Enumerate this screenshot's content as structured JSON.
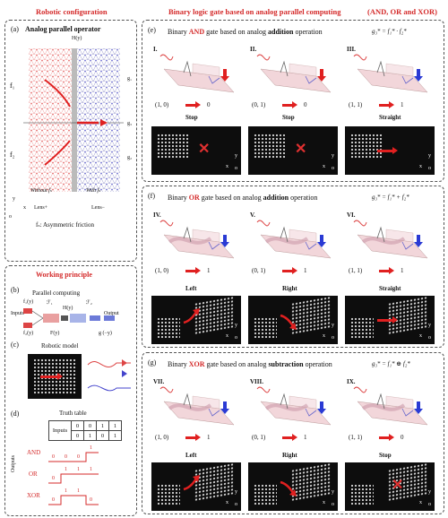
{
  "headers": {
    "left": "Robotic configuration",
    "middle": "Binary logic gate based on analog parallel computing",
    "right": "(AND, OR and XOR)"
  },
  "panel_a": {
    "label": "(a)",
    "title": "Analog parallel operator",
    "H": "H(y)",
    "f1": "f₁",
    "f2": "f₂",
    "g1": "g₁",
    "g3": "g₃",
    "g2": "g₂",
    "without": "Without fₛ",
    "with": "With fₛ",
    "lens_plus": "Lens+",
    "lens_minus": "Lens−",
    "axis_x": "x",
    "axis_y": "y",
    "axis_o": "o",
    "note": "fₛ: Asymmetric friction"
  },
  "panel_b": {
    "section_title": "Working principle",
    "label": "(b)",
    "title": "Parallel computing",
    "f1": "f₁(y)",
    "f2": "f₂(y)",
    "inputs": "Inputs",
    "F1": "ℱ₁",
    "H": "H(y)",
    "F2": "ℱ₂",
    "Fy": "F(y)",
    "output": "Output",
    "g": "g (−y)"
  },
  "panel_c": {
    "label": "(c)",
    "title": "Robotic model"
  },
  "panel_d": {
    "label": "(d)",
    "title": "Truth table",
    "inputs_label": "Inputs",
    "outputs_label": "Outputs",
    "input_rows": [
      [
        "0",
        "0",
        "1",
        "1"
      ],
      [
        "0",
        "1",
        "0",
        "1"
      ]
    ],
    "gates": [
      {
        "name": "AND",
        "values": [
          "0",
          "0",
          "0",
          "1"
        ]
      },
      {
        "name": "OR",
        "values": [
          "0",
          "1",
          "1",
          "1"
        ]
      },
      {
        "name": "XOR",
        "values": [
          "0",
          "1",
          "1",
          "0"
        ]
      }
    ]
  },
  "panel_e": {
    "label": "(e)",
    "title_pre": "Binary ",
    "title_gate": "AND",
    "title_mid": " gate based on analog ",
    "title_op": "addition",
    "title_post": " operation",
    "formula": "g₃* = f₁* · f₂*",
    "cases": [
      {
        "num": "I.",
        "input": "(1, 0)",
        "output": "0",
        "result": "Stop"
      },
      {
        "num": "II.",
        "input": "(0, 1)",
        "output": "0",
        "result": "Stop"
      },
      {
        "num": "III.",
        "input": "(1, 1)",
        "output": "1",
        "result": "Straight"
      }
    ]
  },
  "panel_f": {
    "label": "(f)",
    "title_pre": "Binary ",
    "title_gate": "OR",
    "title_mid": " gate based on analog ",
    "title_op": "addition",
    "title_post": " operation",
    "formula": "g₃* = f₁* + f₂*",
    "cases": [
      {
        "num": "IV.",
        "input": "(1, 0)",
        "output": "1",
        "result": "Left"
      },
      {
        "num": "V.",
        "input": "(0, 1)",
        "output": "1",
        "result": "Right"
      },
      {
        "num": "VI.",
        "input": "(1, 1)",
        "output": "1",
        "result": "Straight"
      }
    ]
  },
  "panel_g": {
    "label": "(g)",
    "title_pre": "Binary ",
    "title_gate": "XOR",
    "title_mid": " gate based on analog ",
    "title_op": "subtraction",
    "title_post": " operation",
    "formula": "g₃* = f₁* ⊕ f₂*",
    "cases": [
      {
        "num": "VII.",
        "input": "(1, 0)",
        "output": "1",
        "result": "Left"
      },
      {
        "num": "VIII.",
        "input": "(0, 1)",
        "output": "1",
        "result": "Right"
      },
      {
        "num": "IX.",
        "input": "(1, 1)",
        "output": "0",
        "result": "Stop"
      }
    ]
  },
  "axes": {
    "y": "y",
    "x": "x",
    "o": "o"
  },
  "colors": {
    "red": "#d42a2a",
    "blue": "#2a3ad4",
    "panel_bg": "#0d0d0d"
  }
}
